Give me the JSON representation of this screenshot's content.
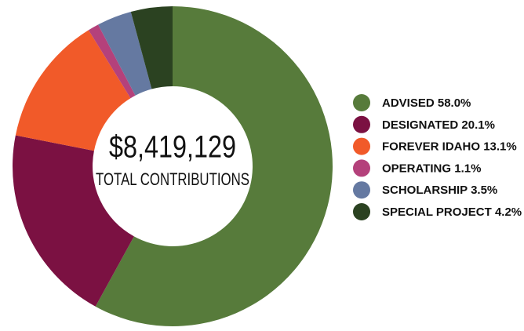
{
  "chart_data": {
    "type": "donut",
    "center_title": "$8,419,129",
    "center_subtitle": "TOTAL CONTRIBUTIONS",
    "categories": [
      "ADVISED",
      "DESIGNATED",
      "FOREVER IDAHO",
      "OPERATING",
      "SCHOLARSHIP",
      "SPECIAL PROJECT"
    ],
    "values": [
      58.0,
      20.1,
      13.1,
      1.1,
      3.5,
      4.2
    ],
    "value_labels": [
      "58.0%",
      "20.1%",
      "13.1%",
      "1.1%",
      "3.5%",
      "4.2%"
    ],
    "colors": [
      "#577b3b",
      "#7b1142",
      "#f15a29",
      "#b4417b",
      "#6579a1",
      "#2b4221"
    ],
    "legend": "right"
  }
}
